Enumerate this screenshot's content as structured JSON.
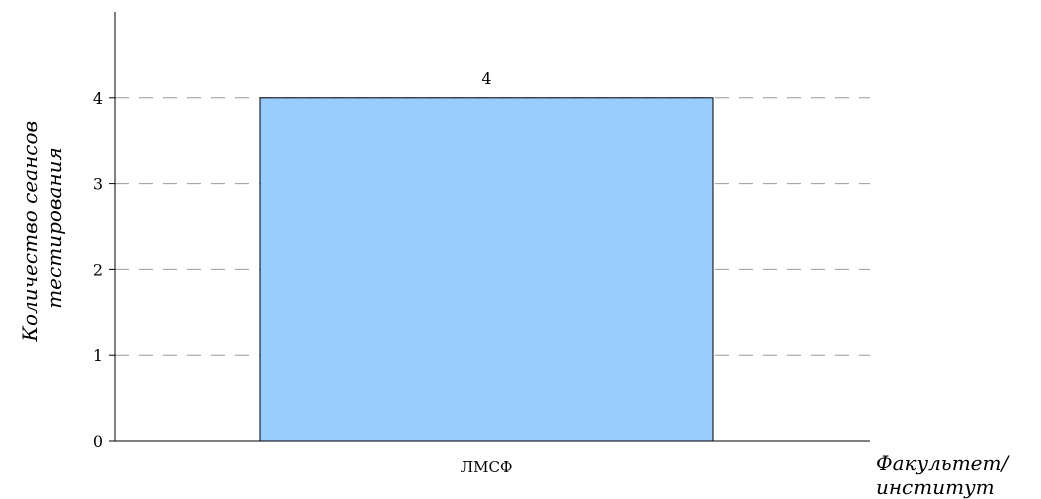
{
  "chart_data": {
    "type": "bar",
    "categories": [
      "ЛМСФ"
    ],
    "values": [
      4
    ],
    "data_labels": [
      "4"
    ],
    "title": "",
    "xlabel_lines": [
      "Факультет/",
      "институт"
    ],
    "ylabel_lines": [
      "Количество сеансов",
      "тестирования"
    ],
    "ylim": [
      0,
      5
    ],
    "yticks": [
      0,
      1,
      2,
      3,
      4
    ],
    "grid": "horizontal-dashed",
    "legend": "none",
    "colors": {
      "bar_fill": "#99ccff",
      "bar_stroke": "#000000",
      "grid": "#999999",
      "axis": "#000000"
    }
  }
}
